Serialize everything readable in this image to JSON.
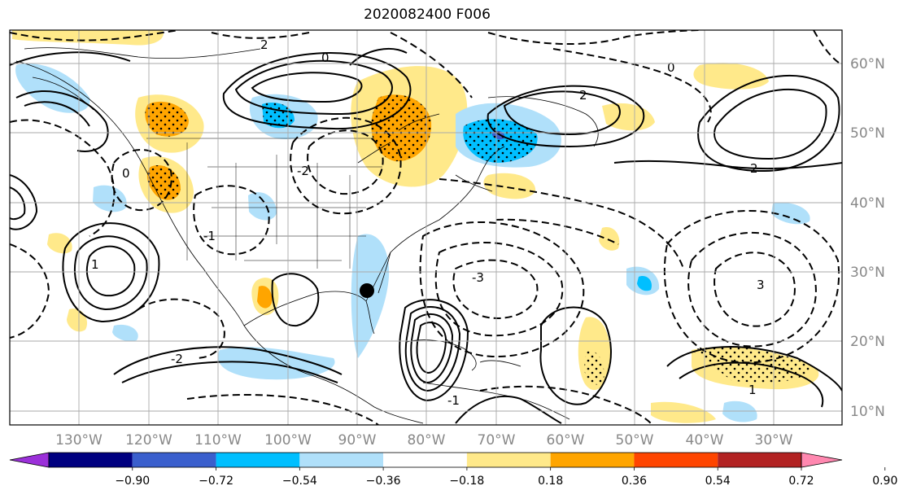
{
  "title": "2020082400 F006",
  "lon_labels": [
    "130°W",
    "120°W",
    "110°W",
    "100°W",
    "90°W",
    "80°W",
    "70°W",
    "60°W",
    "50°W",
    "40°W",
    "30°W"
  ],
  "lat_labels": [
    "60°N",
    "50°N",
    "40°N",
    "30°N",
    "20°N",
    "10°N"
  ],
  "colorbar": {
    "ticks": [
      "−0.90",
      "−0.72",
      "−0.54",
      "−0.36",
      "−0.18",
      "0.18",
      "0.36",
      "0.54",
      "0.72",
      "0.90"
    ],
    "colors": [
      "#9b30d9",
      "#000080",
      "#3a5fcd",
      "#00bfff",
      "#b0e0fa",
      "#ffffff",
      "#ffe98a",
      "#ffa500",
      "#ff4500",
      "#b22222",
      "#ff88b0"
    ]
  },
  "contour_labels": [
    "0",
    "2",
    "-2",
    "-1",
    "1",
    "-3",
    "3",
    "0",
    "2",
    "-1",
    "1",
    "-2",
    "0",
    "2"
  ],
  "colors": {
    "fill_pos_light": "#ffe98a",
    "fill_pos_mid": "#ffa500",
    "fill_neg_light": "#b0e0fa",
    "fill_neg_mid": "#00bfff",
    "fill_neg_dark": "#3a5fcd"
  }
}
